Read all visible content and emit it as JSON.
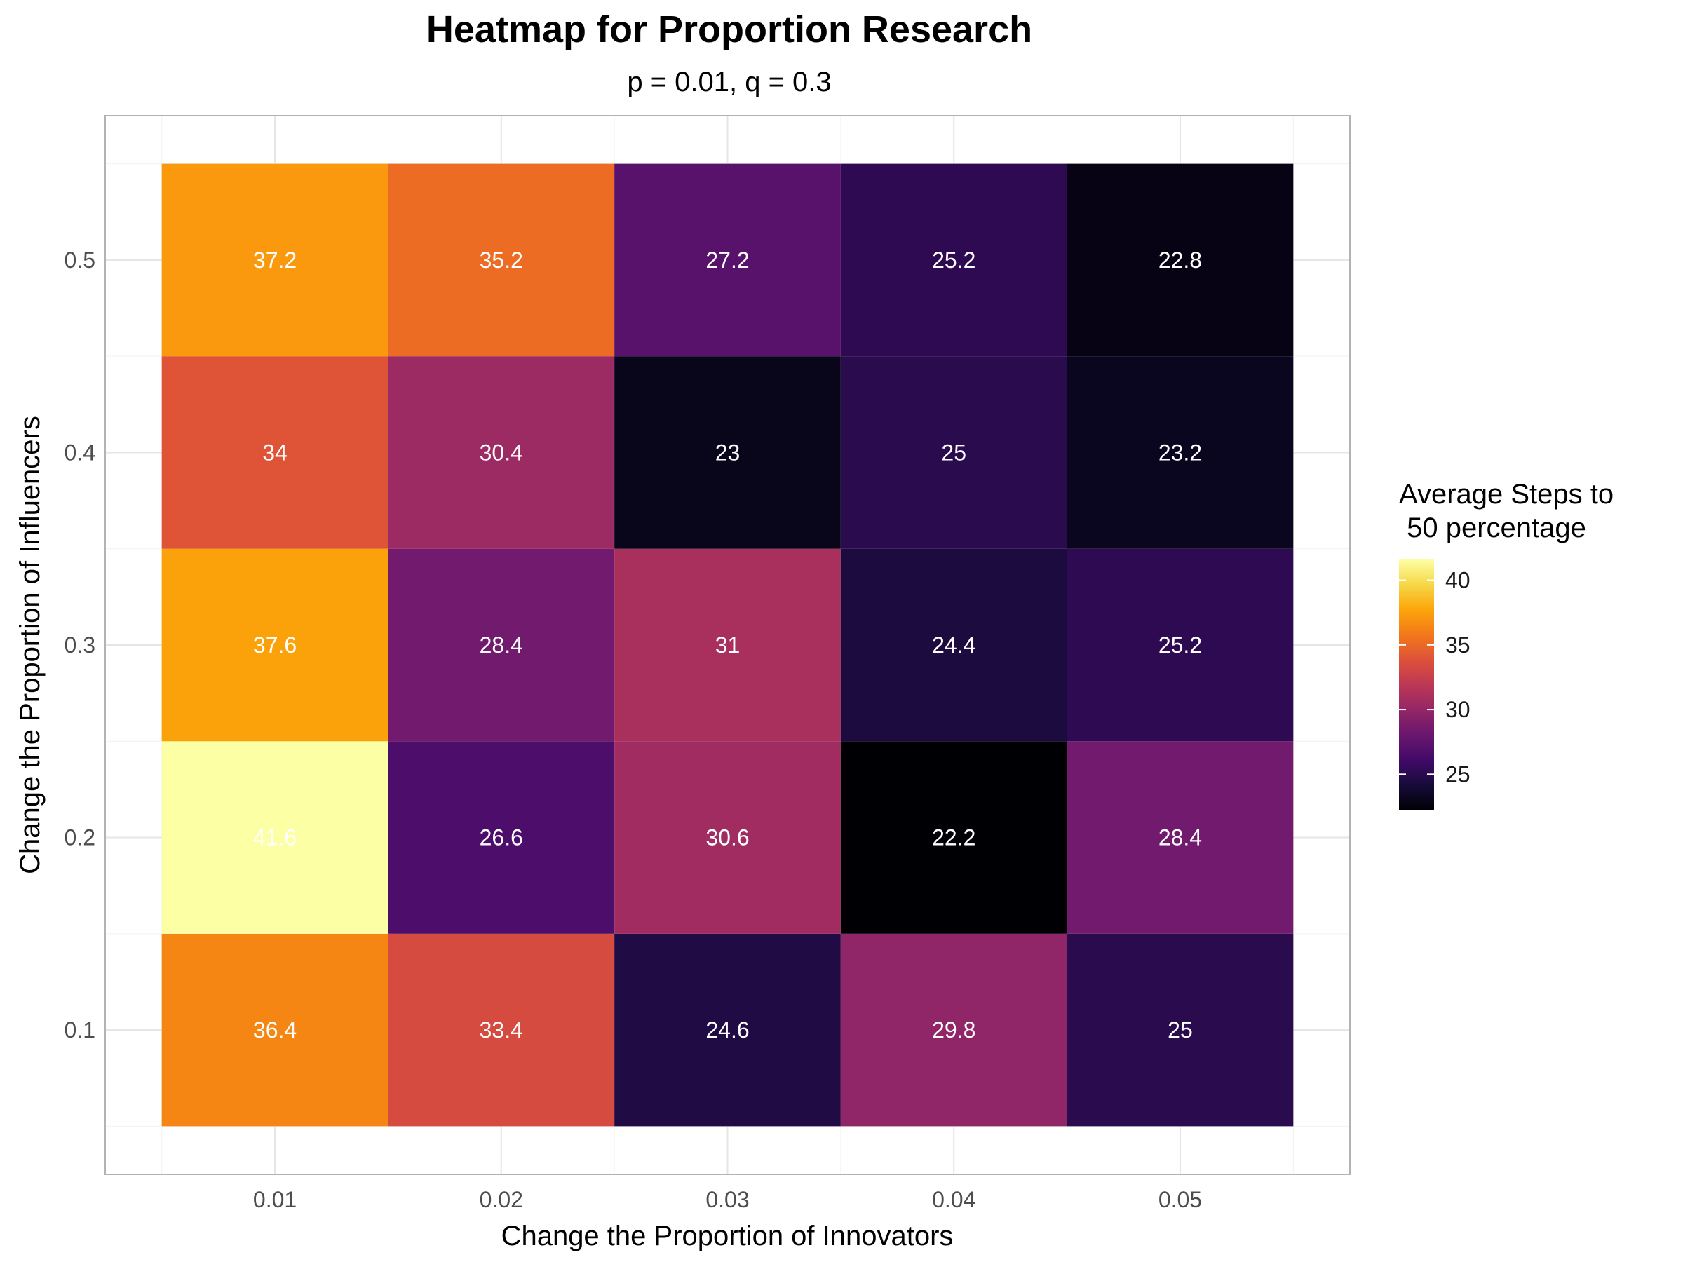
{
  "chart_data": {
    "type": "heatmap",
    "title": "Heatmap for Proportion Research",
    "subtitle": "p = 0.01, q = 0.3",
    "xlabel": "Change the Proportion of Innovators",
    "ylabel": "Change the Proportion of Influencers",
    "x": [
      "0.01",
      "0.02",
      "0.03",
      "0.04",
      "0.05"
    ],
    "y": [
      "0.1",
      "0.2",
      "0.3",
      "0.4",
      "0.5"
    ],
    "values": [
      [
        36.4,
        33.4,
        24.6,
        29.8,
        25
      ],
      [
        41.6,
        26.6,
        30.6,
        22.2,
        28.4
      ],
      [
        37.6,
        28.4,
        31,
        24.4,
        25.2
      ],
      [
        34,
        30.4,
        23,
        25,
        23.2
      ],
      [
        37.2,
        35.2,
        27.2,
        25.2,
        22.8
      ]
    ],
    "legend": {
      "title_lines": [
        "Average Steps to",
        " 50 percentage"
      ],
      "ticks": [
        25,
        30,
        35,
        40
      ],
      "range": [
        22.2,
        41.6
      ],
      "placement": "right"
    },
    "colormap": "inferno",
    "grid": true
  }
}
